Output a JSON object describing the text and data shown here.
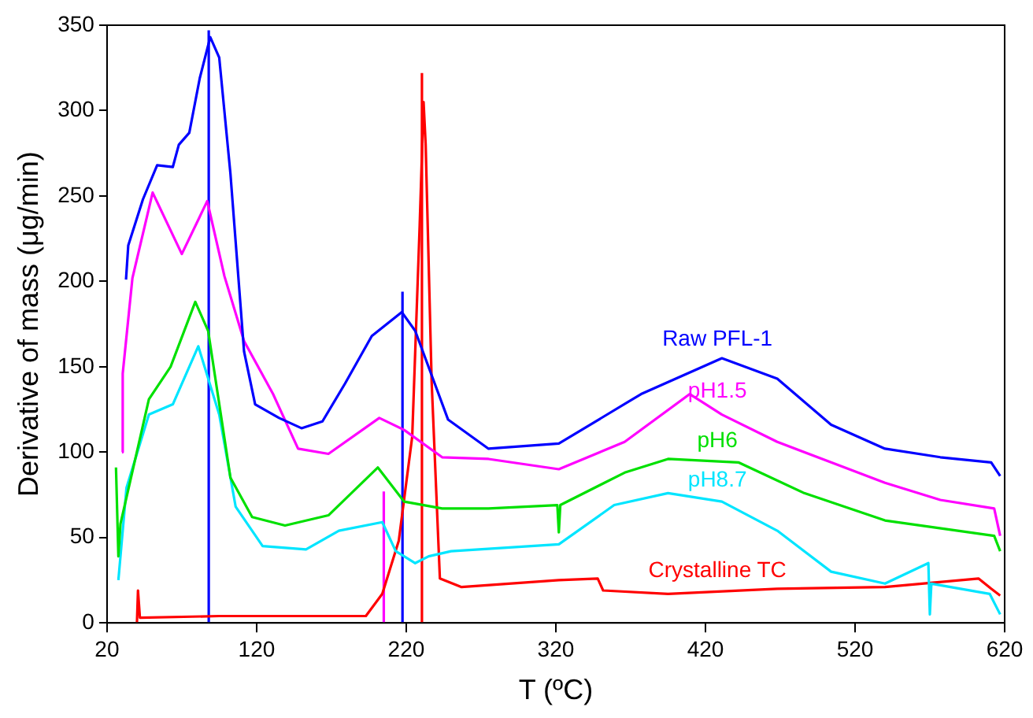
{
  "chart_data": {
    "type": "line",
    "xlabel": "T (ºC)",
    "ylabel": "Derivative of mass (μg/min)",
    "xlim": [
      20,
      620
    ],
    "xticks": [
      20,
      120,
      220,
      320,
      420,
      520,
      620
    ],
    "ylim": [
      0,
      350
    ],
    "yticks": [
      0,
      50,
      100,
      150,
      200,
      250,
      300,
      350
    ],
    "grid": false,
    "legend": false,
    "marker": "none",
    "line_style": "solid",
    "series": [
      {
        "name": "Raw PFL-1",
        "color": "#0000ff",
        "x": [
          32.7,
          34.2,
          44,
          53.5,
          64,
          68,
          75,
          82,
          89,
          95,
          102.5,
          111.6,
          119,
          135,
          150,
          164,
          179,
          197,
          217,
          226,
          248,
          275,
          322,
          377,
          431,
          468,
          504,
          540,
          577,
          611,
          617
        ],
        "values": [
          201,
          221,
          248,
          268,
          267,
          280,
          287,
          319,
          343,
          331,
          263,
          159,
          128,
          120,
          114,
          118,
          140,
          168,
          182,
          171,
          119,
          102,
          105,
          134,
          155,
          143,
          116,
          102,
          97,
          94,
          86
        ]
      },
      {
        "name": "pH1.5",
        "color": "#ff00ff",
        "x": [
          30,
          30.5,
          37,
          50.5,
          70,
          87,
          98.5,
          111.6,
          131,
          147.7,
          168,
          202,
          218.6,
          244,
          275,
          322,
          366,
          409.5,
          431,
          468,
          504,
          540,
          577,
          613,
          617
        ],
        "values": [
          100,
          146,
          202,
          252,
          216,
          247,
          203,
          165,
          134,
          102,
          99,
          120,
          113,
          97,
          96,
          90,
          106,
          134,
          122,
          106,
          94,
          82,
          72,
          67,
          51
        ]
      },
      {
        "name": "pH6",
        "color": "#00e000",
        "x": [
          26,
          27.6,
          29,
          48,
          62.5,
          79,
          87.6,
          102.5,
          117,
          139,
          168,
          201,
          218.6,
          244,
          275,
          321,
          322,
          323,
          366,
          395,
          442,
          486,
          540,
          613,
          617
        ],
        "values": [
          91,
          39,
          58,
          131,
          150,
          188,
          171,
          85,
          62,
          57,
          63,
          91,
          71,
          67,
          67,
          69,
          53,
          69,
          88,
          96,
          94,
          76,
          60,
          51,
          42
        ]
      },
      {
        "name": "pH8.7",
        "color": "#00e5ff",
        "x": [
          27.6,
          33,
          48,
          64,
          81,
          95,
          106,
          124,
          153,
          175,
          204,
          213,
          226,
          235,
          250,
          322,
          359,
          395,
          431,
          468,
          504,
          540,
          569,
          570,
          571,
          610,
          617
        ],
        "values": [
          25,
          79,
          122,
          128,
          162,
          122,
          68,
          45,
          43,
          54,
          59,
          42,
          35,
          39,
          42,
          46,
          69,
          76,
          71,
          54,
          30,
          23,
          35,
          5,
          23,
          17,
          5
        ]
      },
      {
        "name": "Crystalline TC",
        "color": "#ff0000",
        "x": [
          40,
          40.7,
          42,
          95,
          193,
          204,
          215,
          224,
          229,
          231.6,
          233,
          237,
          242.5,
          257,
          322,
          348,
          351.6,
          395,
          468,
          540,
          602.5,
          611,
          617
        ],
        "values": [
          0,
          19,
          3,
          4,
          4,
          17,
          48,
          109,
          233,
          305,
          280,
          141,
          26,
          21,
          25,
          26,
          19,
          17,
          20,
          21,
          26,
          20,
          16
        ]
      },
      {
        "type": "line",
        "color": "#0000ff",
        "x": [
          88,
          88
        ],
        "values": [
          0,
          347
        ]
      },
      {
        "type": "line",
        "color": "#0000ff",
        "x": [
          217.5,
          217.5
        ],
        "values": [
          0,
          194
        ]
      },
      {
        "type": "line",
        "color": "#ff0000",
        "x": [
          230.5,
          230.5
        ],
        "values": [
          0,
          322
        ]
      },
      {
        "type": "line",
        "color": "#ff00ff",
        "x": [
          205,
          205
        ],
        "values": [
          0,
          77
        ]
      }
    ]
  }
}
